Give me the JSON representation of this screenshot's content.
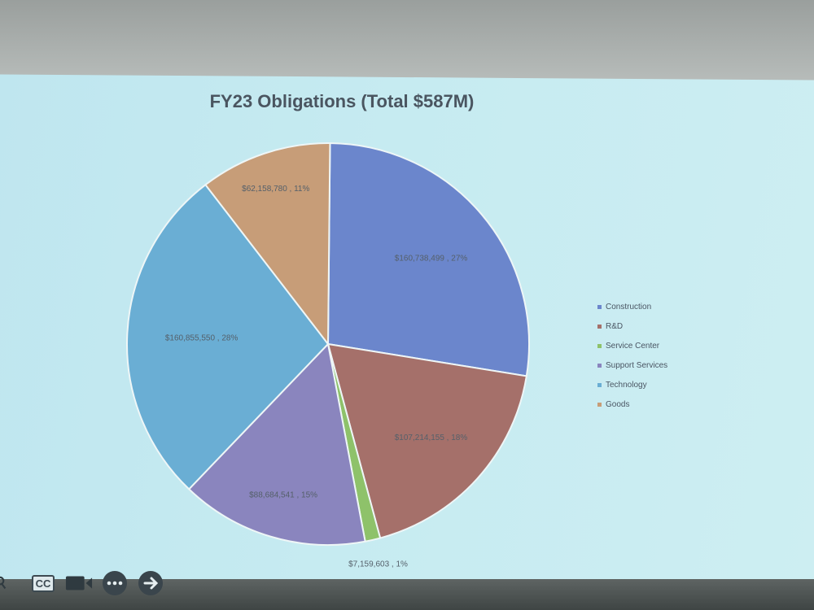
{
  "chart_data": {
    "type": "pie",
    "title": "FY23 Obligations (Total $587M)",
    "legend_position": "right",
    "slices": [
      {
        "name": "Construction",
        "value": 160738499,
        "label": "$160,738,499 , 27%",
        "color": "#6b86cc"
      },
      {
        "name": "R&D",
        "value": 107214155,
        "label": "$107,214,155 , 18%",
        "color": "#a5706a"
      },
      {
        "name": "Service Center",
        "value": 7159603,
        "label": "$7,159,603 , 1%",
        "color": "#8ec26a"
      },
      {
        "name": "Support Services",
        "value": 88684541,
        "label": "$88,684,541 , 15%",
        "color": "#8a85be"
      },
      {
        "name": "Technology",
        "value": 160855550,
        "label": "$160,855,550 , 28%",
        "color": "#6aaed4"
      },
      {
        "name": "Goods",
        "value": 62158780,
        "label": "$62,158,780 , 11%",
        "color": "#c79d78"
      }
    ]
  },
  "toolbar": {
    "cc_label": "CC",
    "icons": [
      "search-icon",
      "closed-captions-icon",
      "video-camera-icon",
      "more-options-icon",
      "next-arrow-icon"
    ]
  }
}
